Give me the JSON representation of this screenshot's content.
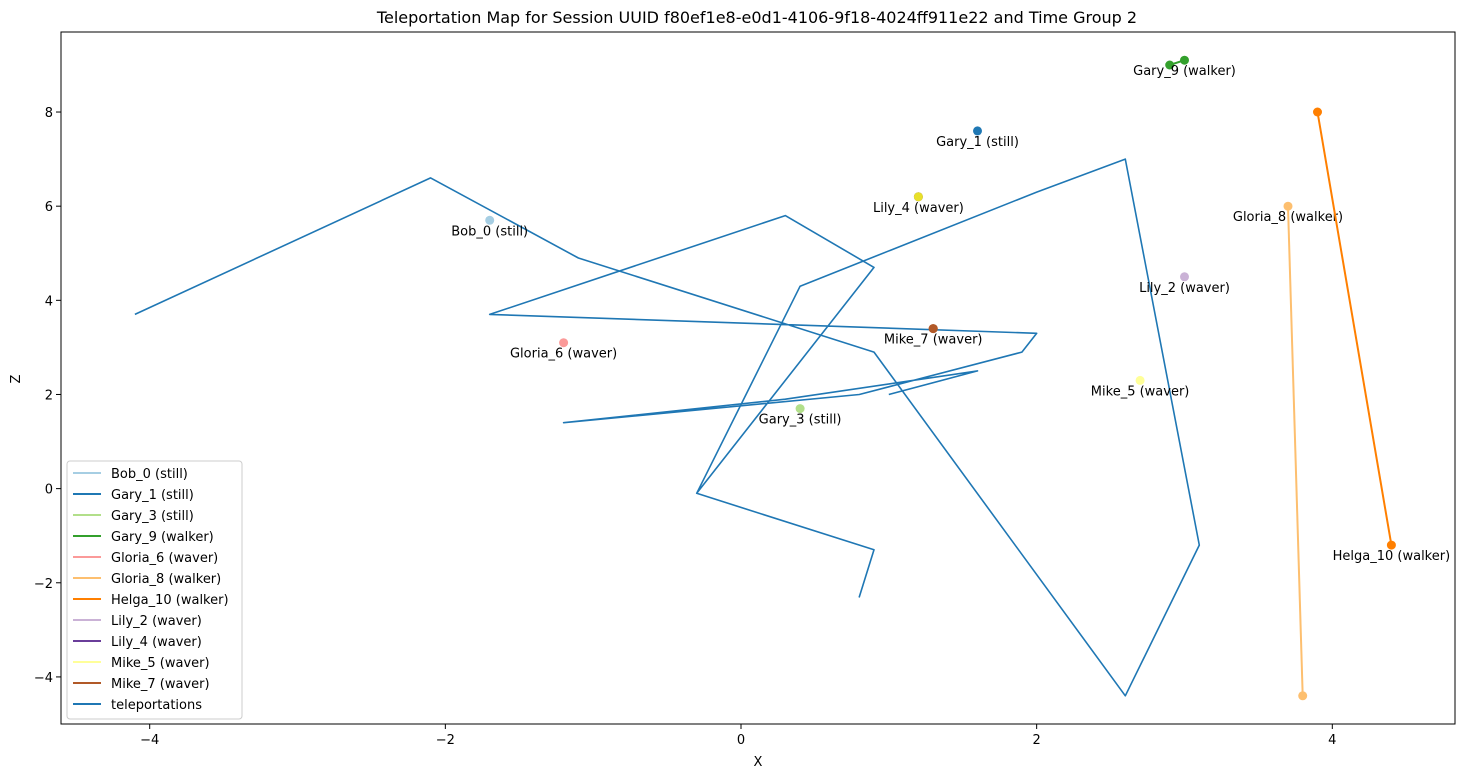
{
  "chart_data": {
    "type": "line",
    "title": "Teleportation Map for Session UUID f80ef1e8-e0d1-4106-9f18-4024ff911e22 and Time Group 2",
    "xlabel": "X",
    "ylabel": "Z",
    "xlim": [
      -4.6,
      4.83
    ],
    "ylim": [
      -5.0,
      9.7
    ],
    "xticks": [
      -4,
      -2,
      0,
      2,
      4
    ],
    "yticks": [
      -4,
      -2,
      0,
      2,
      4,
      6,
      8
    ],
    "grid": false,
    "legend_position": "lower-left",
    "series": [
      {
        "name": "Bob_0 (still)",
        "color": "#a6cee3",
        "label": "Bob_0 (still)",
        "points": [
          [
            -1.7,
            5.7
          ]
        ]
      },
      {
        "name": "Gary_1 (still)",
        "color": "#1f78b4",
        "label": "Gary_1 (still)",
        "points": [
          [
            1.6,
            7.6
          ]
        ]
      },
      {
        "name": "Gary_3 (still)",
        "color": "#b2df8a",
        "label": "Gary_3 (still)",
        "points": [
          [
            0.4,
            1.7
          ]
        ]
      },
      {
        "name": "Gary_9 (walker)",
        "color": "#33a02c",
        "label": "Gary_9 (walker)",
        "points": [
          [
            2.9,
            9.0
          ],
          [
            3.0,
            9.1
          ]
        ]
      },
      {
        "name": "Gloria_6 (waver)",
        "color": "#fb9a99",
        "label": "Gloria_6 (waver)",
        "points": [
          [
            -1.2,
            3.1
          ]
        ]
      },
      {
        "name": "Gloria_8 (walker)",
        "color": "#fdbf6f",
        "label": "Gloria_8 (walker)",
        "points": [
          [
            3.8,
            -4.4
          ],
          [
            3.7,
            6.0
          ]
        ]
      },
      {
        "name": "Helga_10 (walker)",
        "color": "#ff7f00",
        "label": "Helga_10 (walker)",
        "points": [
          [
            3.9,
            8.0
          ],
          [
            4.4,
            -1.2
          ]
        ]
      },
      {
        "name": "Lily_2 (waver)",
        "color": "#cab2d6",
        "label": "Lily_2 (waver)",
        "points": [
          [
            3.0,
            4.5
          ]
        ]
      },
      {
        "name": "Lily_4 (waver)",
        "color": "#6a3d9a",
        "label": "Lily_4 (waver)",
        "points": [
          [
            1.2,
            6.2
          ]
        ]
      },
      {
        "name": "Mike_5 (waver)",
        "color": "#ffff99",
        "label": "Mike_5 (waver)",
        "points": [
          [
            2.7,
            2.3
          ]
        ]
      },
      {
        "name": "Mike_7 (waver)",
        "color": "#b15928",
        "label": "Mike_7 (waver)",
        "points": [
          [
            1.3,
            3.4
          ]
        ]
      }
    ],
    "teleportations": {
      "name": "teleportations",
      "color": "#1f77b4",
      "points": [
        [
          -4.1,
          3.7
        ],
        [
          -2.1,
          6.6
        ],
        [
          -1.1,
          4.9
        ],
        [
          0.9,
          2.9
        ],
        [
          2.6,
          -4.4
        ],
        [
          3.1,
          -1.2
        ],
        [
          2.6,
          7.0
        ],
        [
          2.0,
          6.3
        ],
        [
          0.4,
          4.3
        ],
        [
          -0.3,
          -0.1
        ],
        [
          0.9,
          -1.3
        ],
        [
          0.8,
          -2.3
        ],
        [
          0.9,
          -1.3
        ],
        [
          -0.3,
          -0.1
        ],
        [
          0.9,
          4.7
        ],
        [
          0.3,
          5.8
        ],
        [
          -1.7,
          3.7
        ],
        [
          2.0,
          3.3
        ],
        [
          1.9,
          2.9
        ],
        [
          0.8,
          2.0
        ],
        [
          -1.2,
          1.4
        ],
        [
          0.3,
          1.9
        ],
        [
          1.6,
          2.5
        ],
        [
          1.0,
          2.0
        ]
      ]
    },
    "overlay_markers": [
      {
        "x": 1.2,
        "y": 6.2,
        "color": "#e8e02a"
      },
      {
        "x": 1.3,
        "y": 3.4,
        "color": "#b15928"
      }
    ]
  }
}
